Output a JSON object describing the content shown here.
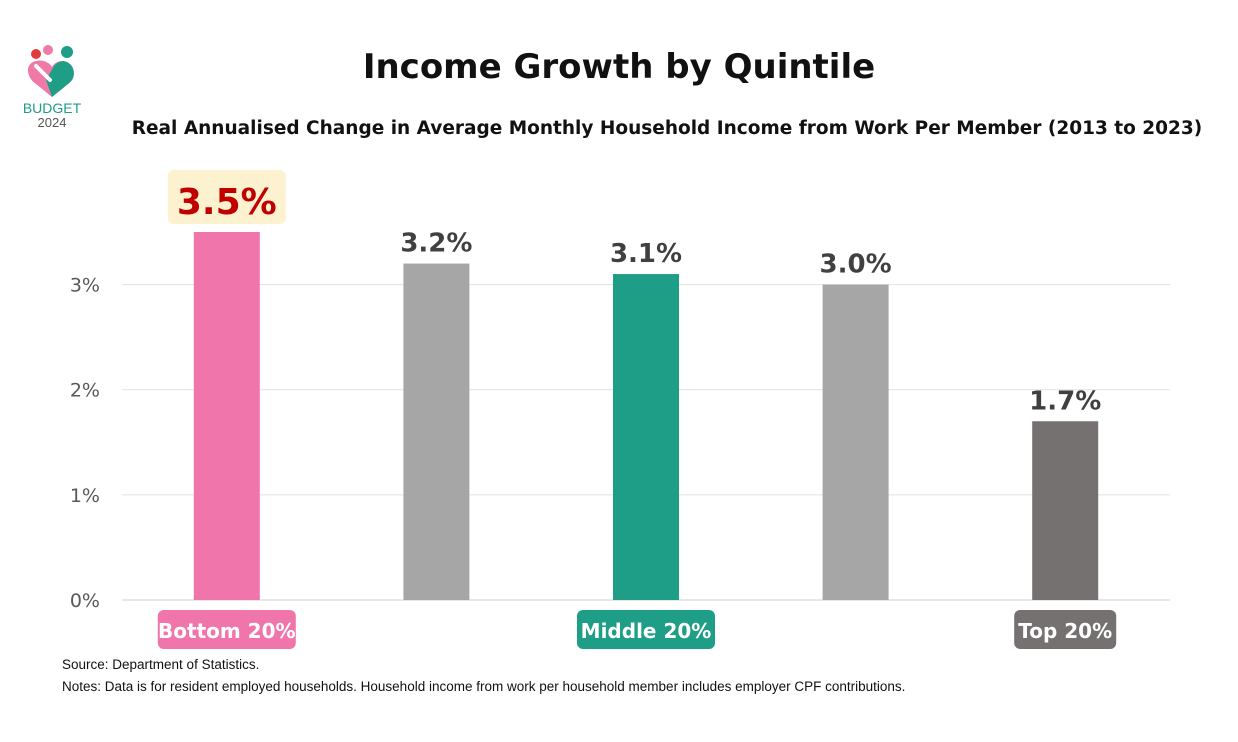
{
  "logo": {
    "word": "BUDGET",
    "year": "2024"
  },
  "title": "Income Growth by Quintile",
  "subtitle": "Real Annualised Change in Average Monthly Household Income from Work Per Member (2013 to 2023)",
  "chart_data": {
    "type": "bar",
    "categories": [
      "Bottom 20%",
      "",
      "Middle 20%",
      "",
      "Top 20%"
    ],
    "values": [
      3.5,
      3.2,
      3.1,
      3.0,
      1.7
    ],
    "data_labels": [
      "3.5%",
      "3.2%",
      "3.1%",
      "3.0%",
      "1.7%"
    ],
    "bar_colors": [
      "#f075ab",
      "#a6a6a6",
      "#1e9e86",
      "#a6a6a6",
      "#767171"
    ],
    "category_label_colors": [
      "#f075ab",
      "",
      "#1e9e86",
      "",
      "#767171"
    ],
    "highlight_label_color": "#c00000",
    "highlight_background": "#fdf2d0",
    "y_ticks": [
      0,
      1,
      2,
      3
    ],
    "y_tick_labels": [
      "0%",
      "1%",
      "2%",
      "3%"
    ],
    "ylim": [
      0,
      3.5
    ],
    "grid": true,
    "legend": "none"
  },
  "footer": {
    "source": "Source: Department of Statistics.",
    "notes": "Notes: Data is for resident employed households. Household income from work per household member includes employer CPF contributions."
  }
}
